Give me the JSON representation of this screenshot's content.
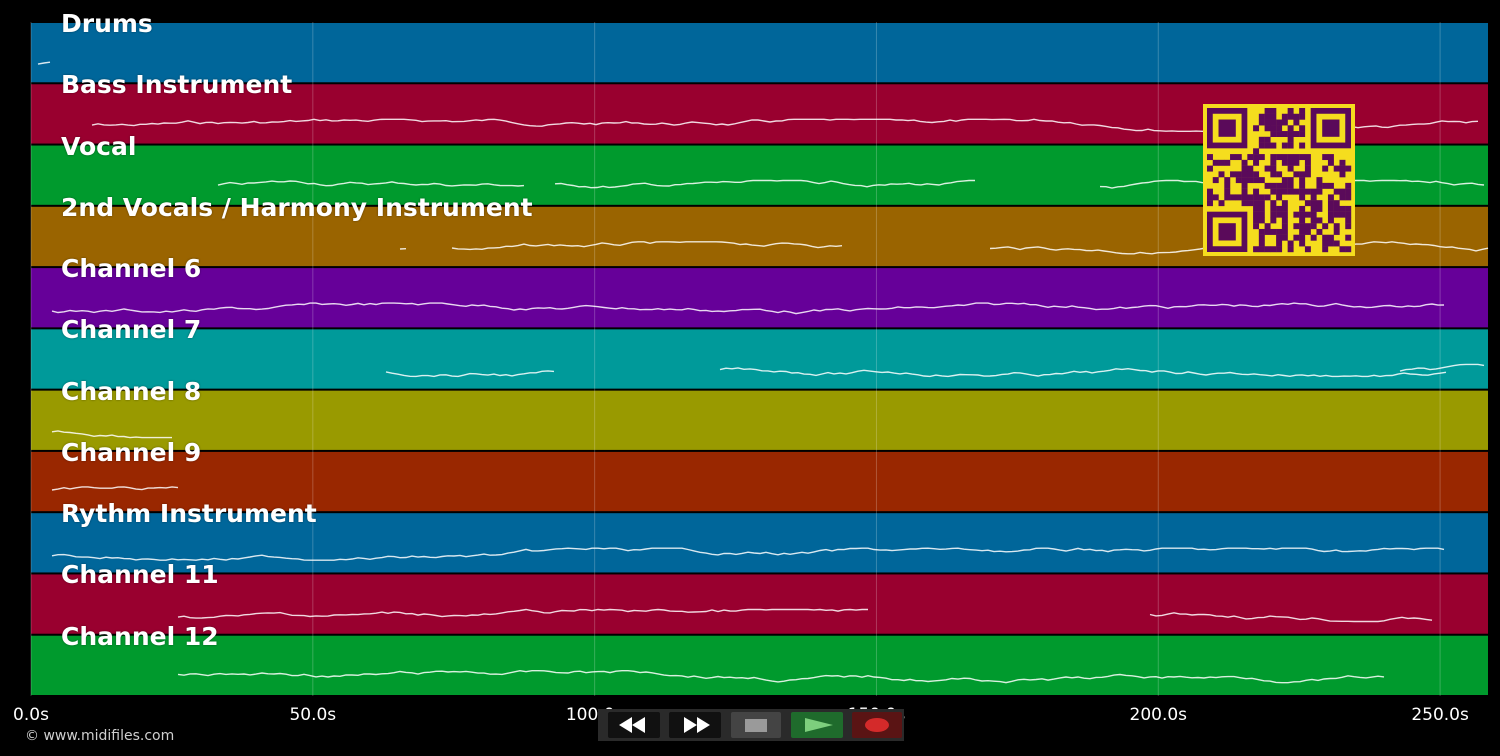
{
  "tracks": [
    {
      "label": "Drums",
      "color": "#00669a"
    },
    {
      "label": "Bass Instrument",
      "color": "#99002f"
    },
    {
      "label": "Vocal",
      "color": "#009a2d"
    },
    {
      "label": "2nd Vocals / Harmony Instrument",
      "color": "#9a6400"
    },
    {
      "label": "Channel 6",
      "color": "#660099"
    },
    {
      "label": "Channel 7",
      "color": "#009a9a"
    },
    {
      "label": "Channel 8",
      "color": "#999a00"
    },
    {
      "label": "Channel 9",
      "color": "#992700"
    },
    {
      "label": "Rythm Instrument",
      "color": "#00669a"
    },
    {
      "label": "Channel 11",
      "color": "#99002f"
    },
    {
      "label": "Channel 12",
      "color": "#009a2d"
    }
  ],
  "timeline": {
    "max_seconds": 258.5,
    "ticks": [
      {
        "seconds": 0,
        "label": "0.0s"
      },
      {
        "seconds": 50,
        "label": "50.0s"
      },
      {
        "seconds": 100,
        "label": "100.0s"
      },
      {
        "seconds": 150,
        "label": "150.0s"
      },
      {
        "seconds": 200,
        "label": "200.0s"
      },
      {
        "seconds": 250,
        "label": "250.0s"
      }
    ]
  },
  "copyright": "© www.midifiles.com",
  "controls": [
    {
      "name": "rewind-button",
      "icon": "rewind-icon",
      "bg": "#111111"
    },
    {
      "name": "fast-forward-button",
      "icon": "fast-forward-icon",
      "bg": "#111111"
    },
    {
      "name": "stop-button",
      "icon": "stop-icon",
      "bg": "#444444"
    },
    {
      "name": "play-button",
      "icon": "play-icon",
      "bg": "#1f6b2c"
    },
    {
      "name": "record-button",
      "icon": "record-icon",
      "bg": "#5a1414"
    }
  ],
  "qr_code": {
    "icon": "qr-code-icon",
    "bg": "#f5dd1e",
    "fg": "#5a0a5a"
  }
}
